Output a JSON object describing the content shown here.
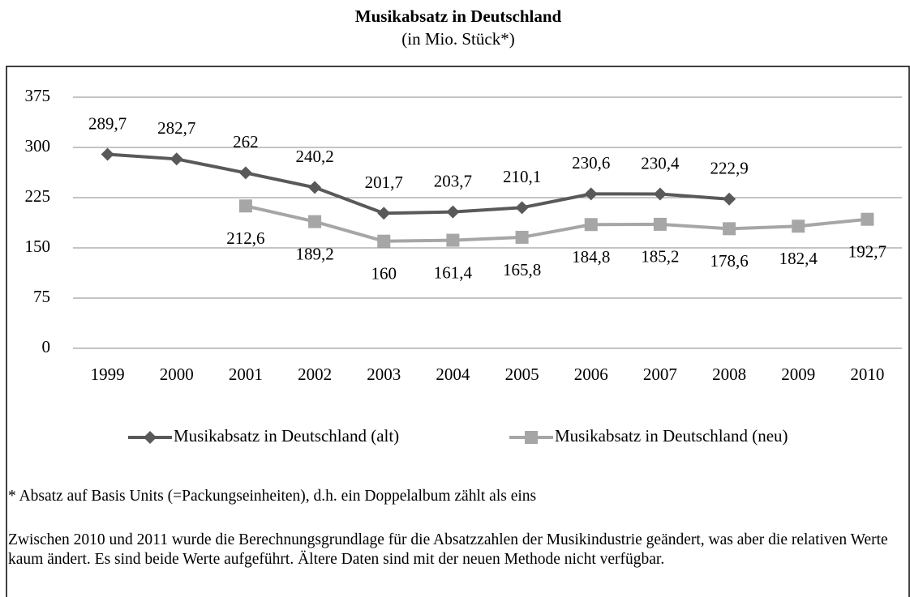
{
  "chart_data": {
    "type": "line",
    "title": "Musikabsatz in Deutschland",
    "subtitle": "(in Mio. Stück*)",
    "categories": [
      "1999",
      "2000",
      "2001",
      "2002",
      "2003",
      "2004",
      "2005",
      "2006",
      "2007",
      "2008",
      "2009",
      "2010"
    ],
    "series": [
      {
        "name": "Musikabsatz in Deutschland (alt)",
        "color": "#595959",
        "marker": "diamond",
        "values": [
          289.7,
          282.7,
          262,
          240.2,
          201.7,
          203.7,
          210.1,
          230.6,
          230.4,
          222.9,
          null,
          null
        ],
        "value_labels": [
          "289,7",
          "282,7",
          "262",
          "240,2",
          "201,7",
          "203,7",
          "210,1",
          "230,6",
          "230,4",
          "222,9",
          null,
          null
        ]
      },
      {
        "name": "Musikabsatz in Deutschland (neu)",
        "color": "#a6a6a6",
        "marker": "square",
        "values": [
          null,
          null,
          212.6,
          189.2,
          160,
          161.4,
          165.8,
          184.8,
          185.2,
          178.6,
          182.4,
          192.7
        ],
        "value_labels": [
          null,
          null,
          "212,6",
          "189,2",
          "160",
          "161,4",
          "165,8",
          "184,8",
          "185,2",
          "178,6",
          "182,4",
          "192,7"
        ]
      }
    ],
    "ylim": [
      0,
      375
    ],
    "yticks": [
      0,
      75,
      150,
      225,
      300,
      375
    ],
    "grid": true,
    "legend": "bottom",
    "notes": [
      "* Absatz auf Basis Units (=Packungseinheiten), d.h. ein Doppelalbum zählt als eins",
      "Zwischen 2010 und 2011 wurde die Berechnungsgrundlage für die Absatzzahlen der Musikindustrie geändert, was aber die relativen Werte kaum ändert. Es sind beide Werte aufgeführt. Ältere Daten sind mit der neuen Methode nicht verfügbar."
    ]
  }
}
